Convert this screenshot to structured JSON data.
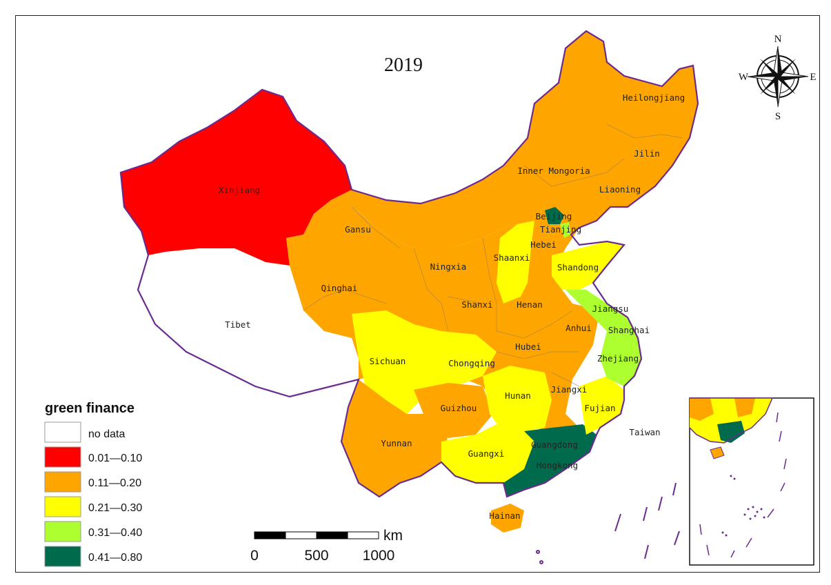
{
  "map": {
    "title": "2019",
    "compass": {
      "n": "N",
      "s": "S",
      "e": "E",
      "w": "W"
    },
    "colors": {
      "no_data": "#ffffff",
      "c1": "#ff0000",
      "c2": "#ffa500",
      "c3": "#ffff00",
      "c4": "#adff2f",
      "c5": "#006b4c",
      "border": "#6a2a8e"
    },
    "legend": {
      "title": "green finance",
      "items": [
        {
          "label": "no data",
          "color": "#ffffff"
        },
        {
          "label": "0.01—0.10",
          "color": "#ff0000"
        },
        {
          "label": "0.11—0.20",
          "color": "#ffa500"
        },
        {
          "label": "0.21—0.30",
          "color": "#ffff00"
        },
        {
          "label": "0.31—0.40",
          "color": "#adff2f"
        },
        {
          "label": "0.41—0.80",
          "color": "#006b4c"
        }
      ]
    },
    "scale_bar": {
      "unit": "km",
      "ticks": [
        "0",
        "500",
        "1000"
      ]
    },
    "provinces": [
      {
        "name": "Heilongjiang",
        "class": "0.11—0.20"
      },
      {
        "name": "Jilin",
        "class": "0.11—0.20"
      },
      {
        "name": "Liaoning",
        "class": "0.11—0.20"
      },
      {
        "name": "Inner Mongoria",
        "class": "0.11—0.20"
      },
      {
        "name": "Xinjiang",
        "class": "0.01—0.10"
      },
      {
        "name": "Gansu",
        "class": "0.11—0.20"
      },
      {
        "name": "Qinghai",
        "class": "0.11—0.20"
      },
      {
        "name": "Tibet",
        "class": "no data"
      },
      {
        "name": "Ningxia",
        "class": "0.11—0.20"
      },
      {
        "name": "Shaanxi",
        "class": "0.21—0.30"
      },
      {
        "name": "Shanxi",
        "class": "0.11—0.20"
      },
      {
        "name": "Hebei",
        "class": "0.11—0.20"
      },
      {
        "name": "Beijing",
        "class": "0.41—0.80"
      },
      {
        "name": "Tianjing",
        "class": "0.31—0.40"
      },
      {
        "name": "Shandong",
        "class": "0.21—0.30"
      },
      {
        "name": "Henan",
        "class": "0.11—0.20"
      },
      {
        "name": "Jiangsu",
        "class": "0.31—0.40"
      },
      {
        "name": "Anhui",
        "class": "0.11—0.20"
      },
      {
        "name": "Shanghai",
        "class": "0.31—0.40"
      },
      {
        "name": "Hubei",
        "class": "0.11—0.20"
      },
      {
        "name": "Zhejiang",
        "class": "0.31—0.40"
      },
      {
        "name": "Sichuan",
        "class": "0.21—0.30"
      },
      {
        "name": "Chongqing",
        "class": "0.21—0.30"
      },
      {
        "name": "Hunan",
        "class": "0.21—0.30"
      },
      {
        "name": "Jiangxi",
        "class": "0.11—0.20"
      },
      {
        "name": "Fujian",
        "class": "0.21—0.30"
      },
      {
        "name": "Guizhou",
        "class": "0.11—0.20"
      },
      {
        "name": "Yunnan",
        "class": "0.11—0.20"
      },
      {
        "name": "Guangxi",
        "class": "0.21—0.30"
      },
      {
        "name": "Guangdong",
        "class": "0.41—0.80"
      },
      {
        "name": "Hongkong",
        "class": "0.41—0.80"
      },
      {
        "name": "Taiwan",
        "class": "no data"
      },
      {
        "name": "Hainan",
        "class": "0.11—0.20"
      }
    ]
  }
}
